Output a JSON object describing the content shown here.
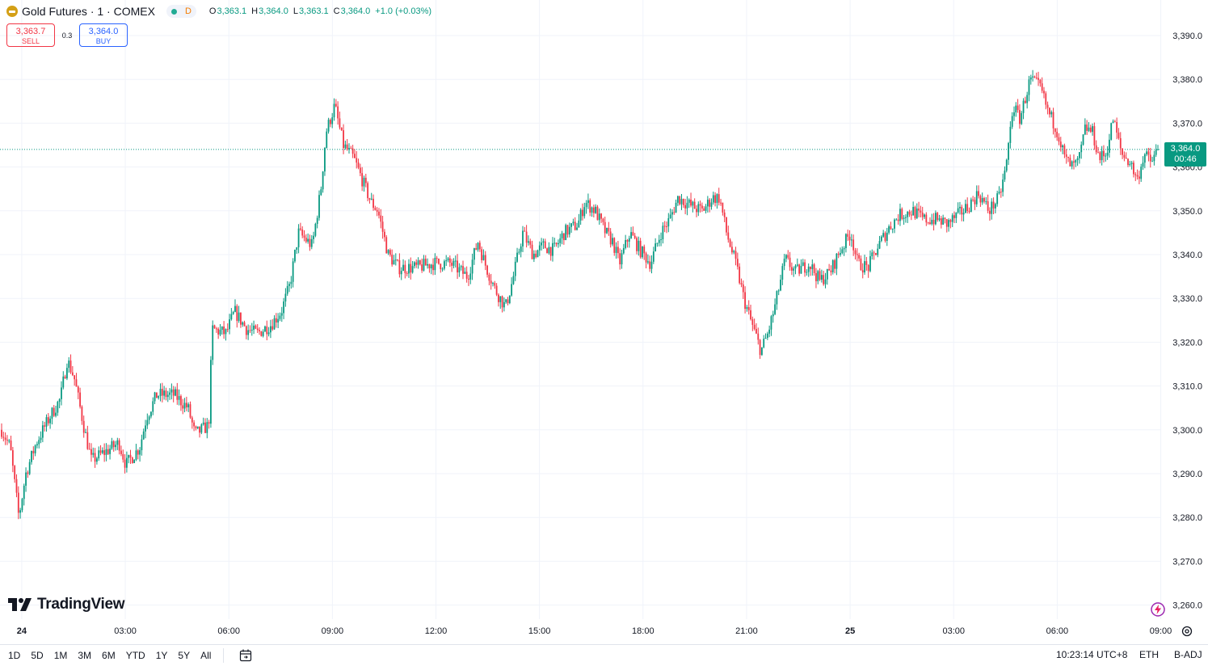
{
  "header": {
    "symbol_title": "Gold Futures · 1 · COMEX",
    "interval_badge": "D",
    "ohlc": [
      {
        "k": "O",
        "v": "3,363.1"
      },
      {
        "k": "H",
        "v": "3,364.0"
      },
      {
        "k": "L",
        "v": "3,363.1"
      },
      {
        "k": "C",
        "v": "3,364.0"
      },
      {
        "k": "",
        "v": "+1.0 (+0.03%)"
      }
    ]
  },
  "trade": {
    "sell_price": "3,363.7",
    "sell_label": "SELL",
    "spread": "0.3",
    "buy_price": "3,364.0",
    "buy_label": "BUY"
  },
  "last_price": {
    "value": "3,364.0",
    "countdown": "00:46"
  },
  "branding": {
    "logo_text": "TradingView"
  },
  "bottom_bar": {
    "ranges": [
      "1D",
      "5D",
      "1M",
      "3M",
      "6M",
      "YTD",
      "1Y",
      "5Y",
      "All"
    ],
    "clock": "10:23:14 UTC+8",
    "session": "ETH",
    "adjust": "B-ADJ"
  },
  "colors": {
    "up": "#089981",
    "down": "#f23645",
    "grid": "#f0f3fa"
  },
  "chart_data": {
    "type": "candlestick",
    "title": "Gold Futures · 1 · COMEX",
    "interval": "1 minute",
    "y_axis": {
      "min": 3256,
      "max": 3393,
      "ticks": [
        3390,
        3380,
        3370,
        3360,
        3350,
        3340,
        3330,
        3320,
        3310,
        3300,
        3290,
        3280,
        3270,
        3260
      ],
      "tick_labels": [
        "3,390.0",
        "3,380.0",
        "3,370.0",
        "3,360.0",
        "3,350.0",
        "3,340.0",
        "3,330.0",
        "3,320.0",
        "3,310.0",
        "3,300.0",
        "3,290.0",
        "3,280.0",
        "3,270.0",
        "3,260.0"
      ]
    },
    "x_axis": {
      "start": "23 23:25",
      "end": "25 09:55",
      "tick_labels": [
        {
          "label": "24",
          "hours": 0.583,
          "bold": true
        },
        {
          "label": "03:00",
          "hours": 3.583
        },
        {
          "label": "06:00",
          "hours": 6.583
        },
        {
          "label": "09:00",
          "hours": 9.583
        },
        {
          "label": "12:00",
          "hours": 12.583
        },
        {
          "label": "15:00",
          "hours": 15.583
        },
        {
          "label": "18:00",
          "hours": 18.583
        },
        {
          "label": "21:00",
          "hours": 21.583
        },
        {
          "label": "25",
          "hours": 24.583,
          "bold": true
        },
        {
          "label": "03:00",
          "hours": 27.583
        },
        {
          "label": "06:00",
          "hours": 30.583
        },
        {
          "label": "09:00",
          "hours": 33.583
        }
      ]
    },
    "last_price": 3364.0,
    "price_path": [
      [
        0.0,
        3300
      ],
      [
        0.25,
        3296
      ],
      [
        0.5,
        3280
      ],
      [
        0.7,
        3290
      ],
      [
        1.0,
        3297
      ],
      [
        1.4,
        3303
      ],
      [
        1.7,
        3307
      ],
      [
        1.9,
        3316
      ],
      [
        2.1,
        3312
      ],
      [
        2.4,
        3300
      ],
      [
        2.6,
        3293
      ],
      [
        3.0,
        3295
      ],
      [
        3.4,
        3297
      ],
      [
        3.6,
        3292
      ],
      [
        4.0,
        3296
      ],
      [
        4.2,
        3303
      ],
      [
        4.5,
        3308
      ],
      [
        5.0,
        3308
      ],
      [
        5.4,
        3305
      ],
      [
        5.6,
        3299
      ],
      [
        6.0,
        3301
      ],
      [
        6.1,
        3323
      ],
      [
        6.5,
        3322
      ],
      [
        6.75,
        3327
      ],
      [
        7.1,
        3323
      ],
      [
        7.4,
        3322
      ],
      [
        7.8,
        3324
      ],
      [
        8.1,
        3327
      ],
      [
        8.35,
        3333
      ],
      [
        8.6,
        3345
      ],
      [
        9.0,
        3342
      ],
      [
        9.25,
        3355
      ],
      [
        9.4,
        3368
      ],
      [
        9.65,
        3374
      ],
      [
        9.9,
        3365
      ],
      [
        10.2,
        3362
      ],
      [
        10.5,
        3356
      ],
      [
        10.7,
        3352
      ],
      [
        10.9,
        3350
      ],
      [
        11.2,
        3340
      ],
      [
        11.5,
        3337
      ],
      [
        12.0,
        3337
      ],
      [
        12.5,
        3338
      ],
      [
        13.0,
        3338
      ],
      [
        13.5,
        3335
      ],
      [
        13.8,
        3343
      ],
      [
        14.0,
        3338
      ],
      [
        14.3,
        3332
      ],
      [
        14.6,
        3328
      ],
      [
        14.8,
        3334
      ],
      [
        15.1,
        3345
      ],
      [
        15.4,
        3340
      ],
      [
        15.7,
        3342
      ],
      [
        16.0,
        3341
      ],
      [
        16.3,
        3345
      ],
      [
        16.7,
        3347
      ],
      [
        16.9,
        3352
      ],
      [
        17.2,
        3350
      ],
      [
        17.5,
        3345
      ],
      [
        17.7,
        3343
      ],
      [
        17.9,
        3338
      ],
      [
        18.2,
        3345
      ],
      [
        18.5,
        3341
      ],
      [
        18.8,
        3338
      ],
      [
        19.1,
        3345
      ],
      [
        19.35,
        3348
      ],
      [
        19.6,
        3353
      ],
      [
        20.0,
        3351
      ],
      [
        20.3,
        3350
      ],
      [
        20.6,
        3353
      ],
      [
        20.8,
        3353
      ],
      [
        21.0,
        3345
      ],
      [
        21.3,
        3337
      ],
      [
        21.5,
        3330
      ],
      [
        21.7,
        3325
      ],
      [
        22.0,
        3318
      ],
      [
        22.2,
        3322
      ],
      [
        22.4,
        3328
      ],
      [
        22.7,
        3339
      ],
      [
        23.0,
        3336
      ],
      [
        23.4,
        3338
      ],
      [
        23.7,
        3334
      ],
      [
        24.0,
        3336
      ],
      [
        24.3,
        3341
      ],
      [
        24.6,
        3345
      ],
      [
        24.8,
        3338
      ],
      [
        25.1,
        3337
      ],
      [
        25.4,
        3342
      ],
      [
        25.7,
        3346
      ],
      [
        26.0,
        3349
      ],
      [
        26.4,
        3350
      ],
      [
        26.7,
        3348
      ],
      [
        27.1,
        3348
      ],
      [
        27.4,
        3347
      ],
      [
        27.7,
        3349
      ],
      [
        28.0,
        3351
      ],
      [
        28.3,
        3354
      ],
      [
        28.6,
        3350
      ],
      [
        28.9,
        3353
      ],
      [
        29.1,
        3360
      ],
      [
        29.3,
        3374
      ],
      [
        29.5,
        3371
      ],
      [
        29.8,
        3380
      ],
      [
        30.1,
        3378
      ],
      [
        30.3,
        3373
      ],
      [
        30.6,
        3368
      ],
      [
        30.8,
        3362
      ],
      [
        31.0,
        3360
      ],
      [
        31.2,
        3361
      ],
      [
        31.4,
        3369
      ],
      [
        31.6,
        3368
      ],
      [
        31.8,
        3362
      ],
      [
        32.0,
        3363
      ],
      [
        32.2,
        3371
      ],
      [
        32.45,
        3363
      ],
      [
        32.7,
        3361
      ],
      [
        32.9,
        3357
      ],
      [
        33.1,
        3363
      ],
      [
        33.3,
        3361
      ],
      [
        33.5,
        3364
      ]
    ]
  }
}
